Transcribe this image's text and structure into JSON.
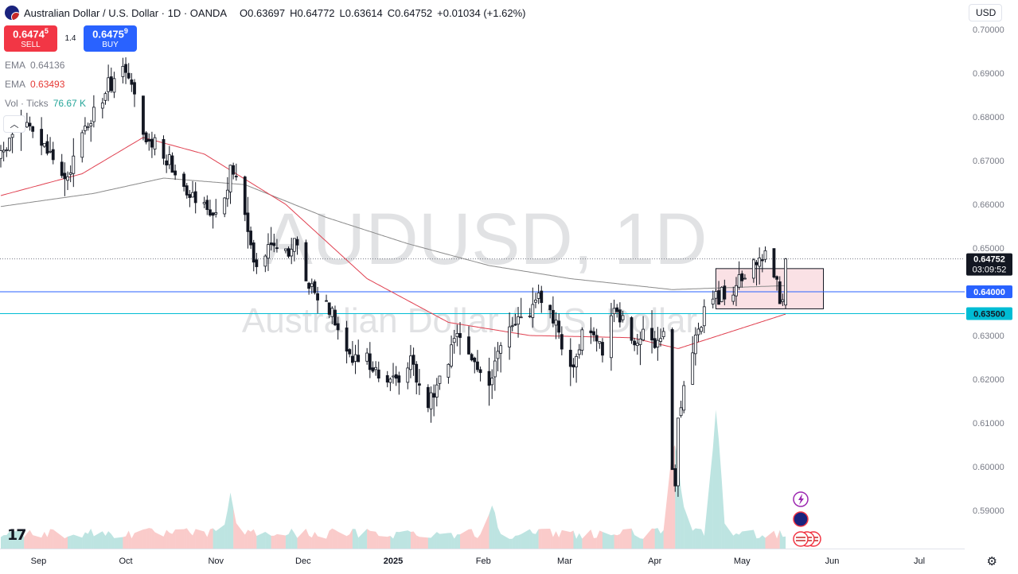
{
  "header": {
    "title": "Australian Dollar / U.S. Dollar · 1D · OANDA",
    "o_key": "O",
    "o_val": "0.63697",
    "h_key": "H",
    "h_val": "0.64772",
    "l_key": "L",
    "l_val": "0.63614",
    "c_key": "C",
    "c_val": "0.64752",
    "change": "+0.01034 (+1.62%)"
  },
  "trade": {
    "sell_price_main": "0.6474",
    "sell_price_sup": "5",
    "sell_label": "SELL",
    "spread": "1.4",
    "buy_price_main": "0.6475",
    "buy_price_sup": "9",
    "buy_label": "BUY"
  },
  "indicators": [
    {
      "name": "EMA",
      "value": "0.64136",
      "color": "#787b86"
    },
    {
      "name": "EMA",
      "value": "0.63493",
      "color": "#e53935"
    },
    {
      "name": "Vol · Ticks",
      "value": "76.67 K",
      "color": "#26a69a"
    }
  ],
  "currency": "USD",
  "watermark": {
    "symbol": "AUDUSD, 1D",
    "description": "Australian Dollar / U.S. Dollar"
  },
  "price_scale": {
    "ticks": [
      "0.70000",
      "0.69000",
      "0.68000",
      "0.67000",
      "0.66000",
      "0.65000",
      "0.63000",
      "0.62000",
      "0.61000",
      "0.60000",
      "0.59000"
    ],
    "last_price": "0.64752",
    "countdown": "03:09:52",
    "level_1": "0.64000",
    "level_2": "0.63500"
  },
  "time_axis": [
    "Sep",
    "Oct",
    "Nov",
    "Dec",
    "2025",
    "Feb",
    "Mar",
    "Apr",
    "May",
    "Jun",
    "Jul"
  ],
  "colors": {
    "up": "#131722",
    "down": "#131722",
    "ema_long": "#8a8a8a",
    "ema_short": "#e04050",
    "vol_up": "#26a69a",
    "vol_down": "#ef5350",
    "line_blue": "#2962ff",
    "line_teal": "#00bcd4",
    "box_fill": "#f8d7dc",
    "box_stroke": "#131722"
  },
  "event_icons": [
    "lightning-icon",
    "australia-flag-icon",
    "us-flag-icon"
  ],
  "chart_data": {
    "type": "candlestick",
    "symbol": "AUDUSD",
    "interval": "1D",
    "ylim": [
      0.583,
      0.7015
    ],
    "price_path": [
      [
        "2024-08-19",
        0.6705
      ],
      [
        "2024-08-23",
        0.676
      ],
      [
        "2024-08-27",
        0.6785
      ],
      [
        "2024-09-03",
        0.673
      ],
      [
        "2024-09-11",
        0.6645
      ],
      [
        "2024-09-13",
        0.672
      ],
      [
        "2024-09-20",
        0.681
      ],
      [
        "2024-09-25",
        0.687
      ],
      [
        "2024-09-30",
        0.6915
      ],
      [
        "2024-10-03",
        0.6865
      ],
      [
        "2024-10-07",
        0.6745
      ],
      [
        "2024-10-11",
        0.674
      ],
      [
        "2024-10-16",
        0.67
      ],
      [
        "2024-10-22",
        0.664
      ],
      [
        "2024-10-25",
        0.662
      ],
      [
        "2024-10-31",
        0.658
      ],
      [
        "2024-11-04",
        0.66
      ],
      [
        "2024-11-06",
        0.667
      ],
      [
        "2024-11-07",
        0.668
      ],
      [
        "2024-11-12",
        0.654
      ],
      [
        "2024-11-15",
        0.646
      ],
      [
        "2024-11-20",
        0.652
      ],
      [
        "2024-11-25",
        0.649
      ],
      [
        "2024-11-29",
        0.651
      ],
      [
        "2024-12-03",
        0.642
      ],
      [
        "2024-12-06",
        0.639
      ],
      [
        "2024-12-11",
        0.636
      ],
      [
        "2024-12-18",
        0.624
      ],
      [
        "2024-12-23",
        0.625
      ],
      [
        "2024-12-31",
        0.6185
      ],
      [
        "2025-01-07",
        0.6245
      ],
      [
        "2025-01-13",
        0.614
      ],
      [
        "2025-01-17",
        0.621
      ],
      [
        "2025-01-24",
        0.63
      ],
      [
        "2025-01-28",
        0.625
      ],
      [
        "2025-02-03",
        0.618
      ],
      [
        "2025-02-07",
        0.628
      ],
      [
        "2025-02-14",
        0.634
      ],
      [
        "2025-02-18",
        0.637
      ],
      [
        "2025-02-20",
        0.64
      ],
      [
        "2025-02-25",
        0.633
      ],
      [
        "2025-03-04",
        0.623
      ],
      [
        "2025-03-07",
        0.63
      ],
      [
        "2025-03-14",
        0.627
      ],
      [
        "2025-03-18",
        0.637
      ],
      [
        "2025-03-24",
        0.629
      ],
      [
        "2025-03-28",
        0.63
      ],
      [
        "2025-04-01",
        0.626
      ],
      [
        "2025-04-04",
        0.629
      ],
      [
        "2025-04-07",
        0.6
      ],
      [
        "2025-04-08",
        0.596
      ],
      [
        "2025-04-09",
        0.612
      ],
      [
        "2025-04-14",
        0.627
      ],
      [
        "2025-04-18",
        0.636
      ],
      [
        "2025-04-23",
        0.639
      ],
      [
        "2025-04-29",
        0.641
      ],
      [
        "2025-05-02",
        0.644
      ],
      [
        "2025-05-07",
        0.6465
      ],
      [
        "2025-05-09",
        0.649
      ],
      [
        "2025-05-13",
        0.642
      ],
      [
        "2025-05-14",
        0.638
      ],
      [
        "2025-05-15",
        0.6395
      ],
      [
        "2025-05-16",
        0.6475
      ]
    ],
    "last_candle": {
      "open": 0.63697,
      "high": 0.64772,
      "low": 0.63614,
      "close": 0.64752
    },
    "horizontal_lines": [
      0.64,
      0.635
    ],
    "consolidation_box": {
      "from": "2025-04-22",
      "to": "2025-05-29",
      "top": 0.6453,
      "bottom": 0.6361
    },
    "ema_slow_approx": [
      [
        "2024-08-19",
        0.6595
      ],
      [
        "2024-09-20",
        0.6625
      ],
      [
        "2024-10-14",
        0.666
      ],
      [
        "2024-11-11",
        0.6645
      ],
      [
        "2024-12-09",
        0.657
      ],
      [
        "2025-01-06",
        0.651
      ],
      [
        "2025-02-03",
        0.646
      ],
      [
        "2025-03-03",
        0.643
      ],
      [
        "2025-04-07",
        0.6405
      ],
      [
        "2025-05-16",
        0.6414
      ]
    ],
    "ema_fast_approx": [
      [
        "2024-08-19",
        0.662
      ],
      [
        "2024-09-16",
        0.667
      ],
      [
        "2024-10-07",
        0.6753
      ],
      [
        "2024-10-28",
        0.6715
      ],
      [
        "2024-11-25",
        0.66
      ],
      [
        "2024-12-23",
        0.643
      ],
      [
        "2025-01-20",
        0.633
      ],
      [
        "2025-02-17",
        0.63
      ],
      [
        "2025-03-24",
        0.6295
      ],
      [
        "2025-04-09",
        0.627
      ],
      [
        "2025-05-16",
        0.6349
      ]
    ],
    "volume_peak_dates": [
      "2024-11-06",
      "2025-02-04",
      "2025-04-07",
      "2025-04-09",
      "2025-04-22"
    ],
    "last_volume": "76.67 K"
  }
}
